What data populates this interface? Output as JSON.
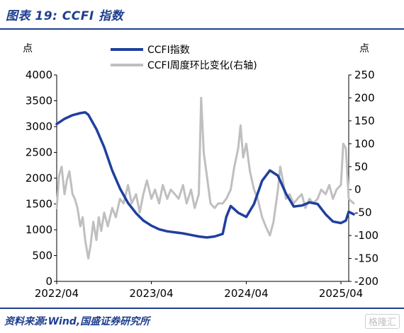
{
  "header": {
    "title": "图表 19:  CCFI 指数"
  },
  "footer": {
    "source": "资料来源:Wind,国盛证券研究所",
    "watermark": "格隆汇"
  },
  "units": {
    "left": "点",
    "right": "点"
  },
  "chart_data": {
    "type": "line",
    "title": "",
    "xlabel": "",
    "ylabel": "点",
    "y2label": "点",
    "x_tick_labels": [
      "2022/04",
      "2023/04",
      "2024/04",
      "2025/04"
    ],
    "x_range": [
      "2022/04",
      "2025/05"
    ],
    "ylim": [
      0,
      4000
    ],
    "y_ticks": [
      0,
      500,
      1000,
      1500,
      2000,
      2500,
      3000,
      3500,
      4000
    ],
    "y2lim": [
      -200,
      250
    ],
    "y2_ticks": [
      -200,
      -150,
      -100,
      -50,
      0,
      50,
      100,
      150,
      200,
      250
    ],
    "legend_position": "top",
    "grid": false,
    "series": [
      {
        "name": "CCFI指数",
        "axis": "left",
        "color": "#1f3f9f",
        "points": [
          [
            "2022-04-01",
            3050
          ],
          [
            "2022-05-01",
            3150
          ],
          [
            "2022-06-01",
            3220
          ],
          [
            "2022-07-01",
            3260
          ],
          [
            "2022-07-20",
            3275
          ],
          [
            "2022-08-01",
            3230
          ],
          [
            "2022-09-01",
            2950
          ],
          [
            "2022-10-01",
            2600
          ],
          [
            "2022-11-01",
            2150
          ],
          [
            "2022-12-01",
            1800
          ],
          [
            "2023-01-01",
            1520
          ],
          [
            "2023-02-01",
            1320
          ],
          [
            "2023-03-01",
            1180
          ],
          [
            "2023-04-01",
            1080
          ],
          [
            "2023-05-01",
            1010
          ],
          [
            "2023-06-01",
            970
          ],
          [
            "2023-07-01",
            950
          ],
          [
            "2023-08-01",
            930
          ],
          [
            "2023-09-01",
            900
          ],
          [
            "2023-10-01",
            870
          ],
          [
            "2023-11-01",
            850
          ],
          [
            "2023-12-01",
            870
          ],
          [
            "2024-01-01",
            920
          ],
          [
            "2024-01-15",
            1250
          ],
          [
            "2024-02-01",
            1460
          ],
          [
            "2024-03-01",
            1330
          ],
          [
            "2024-04-01",
            1250
          ],
          [
            "2024-05-01",
            1500
          ],
          [
            "2024-06-01",
            1950
          ],
          [
            "2024-07-01",
            2150
          ],
          [
            "2024-08-01",
            2050
          ],
          [
            "2024-09-01",
            1700
          ],
          [
            "2024-10-01",
            1450
          ],
          [
            "2024-11-01",
            1470
          ],
          [
            "2024-12-01",
            1530
          ],
          [
            "2025-01-01",
            1500
          ],
          [
            "2025-02-01",
            1300
          ],
          [
            "2025-03-01",
            1160
          ],
          [
            "2025-04-01",
            1130
          ],
          [
            "2025-04-20",
            1180
          ],
          [
            "2025-05-01",
            1350
          ],
          [
            "2025-05-20",
            1300
          ]
        ]
      },
      {
        "name": "CCFI周度环比变化(右轴)",
        "axis": "right",
        "color": "#bfbfbf",
        "points": [
          [
            "2022-04-01",
            -40
          ],
          [
            "2022-04-10",
            30
          ],
          [
            "2022-04-20",
            50
          ],
          [
            "2022-05-01",
            -10
          ],
          [
            "2022-05-10",
            20
          ],
          [
            "2022-05-20",
            40
          ],
          [
            "2022-06-01",
            -10
          ],
          [
            "2022-06-10",
            -20
          ],
          [
            "2022-06-20",
            -40
          ],
          [
            "2022-07-01",
            -80
          ],
          [
            "2022-07-10",
            -60
          ],
          [
            "2022-07-20",
            -110
          ],
          [
            "2022-08-01",
            -150
          ],
          [
            "2022-08-10",
            -120
          ],
          [
            "2022-08-20",
            -70
          ],
          [
            "2022-09-01",
            -110
          ],
          [
            "2022-09-10",
            -60
          ],
          [
            "2022-09-20",
            -90
          ],
          [
            "2022-10-01",
            -50
          ],
          [
            "2022-10-15",
            -80
          ],
          [
            "2022-11-01",
            -40
          ],
          [
            "2022-11-15",
            -60
          ],
          [
            "2022-12-01",
            -20
          ],
          [
            "2022-12-15",
            -30
          ],
          [
            "2023-01-01",
            10
          ],
          [
            "2023-01-15",
            -30
          ],
          [
            "2023-02-01",
            -10
          ],
          [
            "2023-02-15",
            -50
          ],
          [
            "2023-03-01",
            -10
          ],
          [
            "2023-03-15",
            20
          ],
          [
            "2023-04-01",
            -20
          ],
          [
            "2023-04-15",
            0
          ],
          [
            "2023-05-01",
            -30
          ],
          [
            "2023-05-15",
            10
          ],
          [
            "2023-06-01",
            -20
          ],
          [
            "2023-06-15",
            0
          ],
          [
            "2023-07-01",
            -10
          ],
          [
            "2023-07-15",
            -20
          ],
          [
            "2023-08-01",
            10
          ],
          [
            "2023-08-15",
            -30
          ],
          [
            "2023-09-01",
            0
          ],
          [
            "2023-09-15",
            -40
          ],
          [
            "2023-10-01",
            -10
          ],
          [
            "2023-10-10",
            200
          ],
          [
            "2023-10-20",
            80
          ],
          [
            "2023-11-01",
            30
          ],
          [
            "2023-11-15",
            -30
          ],
          [
            "2023-12-01",
            -40
          ],
          [
            "2023-12-15",
            -30
          ],
          [
            "2024-01-01",
            -30
          ],
          [
            "2024-01-15",
            -20
          ],
          [
            "2024-02-01",
            0
          ],
          [
            "2024-02-15",
            50
          ],
          [
            "2024-03-01",
            90
          ],
          [
            "2024-03-10",
            140
          ],
          [
            "2024-03-20",
            70
          ],
          [
            "2024-04-01",
            100
          ],
          [
            "2024-04-15",
            40
          ],
          [
            "2024-05-01",
            0
          ],
          [
            "2024-05-15",
            -20
          ],
          [
            "2024-06-01",
            -60
          ],
          [
            "2024-06-15",
            -80
          ],
          [
            "2024-07-01",
            -100
          ],
          [
            "2024-07-15",
            -70
          ],
          [
            "2024-08-01",
            0
          ],
          [
            "2024-08-10",
            50
          ],
          [
            "2024-08-20",
            20
          ],
          [
            "2024-09-01",
            -20
          ],
          [
            "2024-09-15",
            -10
          ],
          [
            "2024-10-01",
            -30
          ],
          [
            "2024-10-15",
            -20
          ],
          [
            "2024-11-01",
            -10
          ],
          [
            "2024-11-15",
            -40
          ],
          [
            "2024-12-01",
            -20
          ],
          [
            "2024-12-15",
            -30
          ],
          [
            "2025-01-01",
            -20
          ],
          [
            "2025-01-15",
            0
          ],
          [
            "2025-02-01",
            -10
          ],
          [
            "2025-02-15",
            10
          ],
          [
            "2025-03-01",
            -20
          ],
          [
            "2025-03-15",
            0
          ],
          [
            "2025-04-01",
            10
          ],
          [
            "2025-04-10",
            100
          ],
          [
            "2025-04-20",
            90
          ],
          [
            "2025-05-01",
            -20
          ],
          [
            "2025-05-20",
            -30
          ]
        ]
      }
    ]
  }
}
